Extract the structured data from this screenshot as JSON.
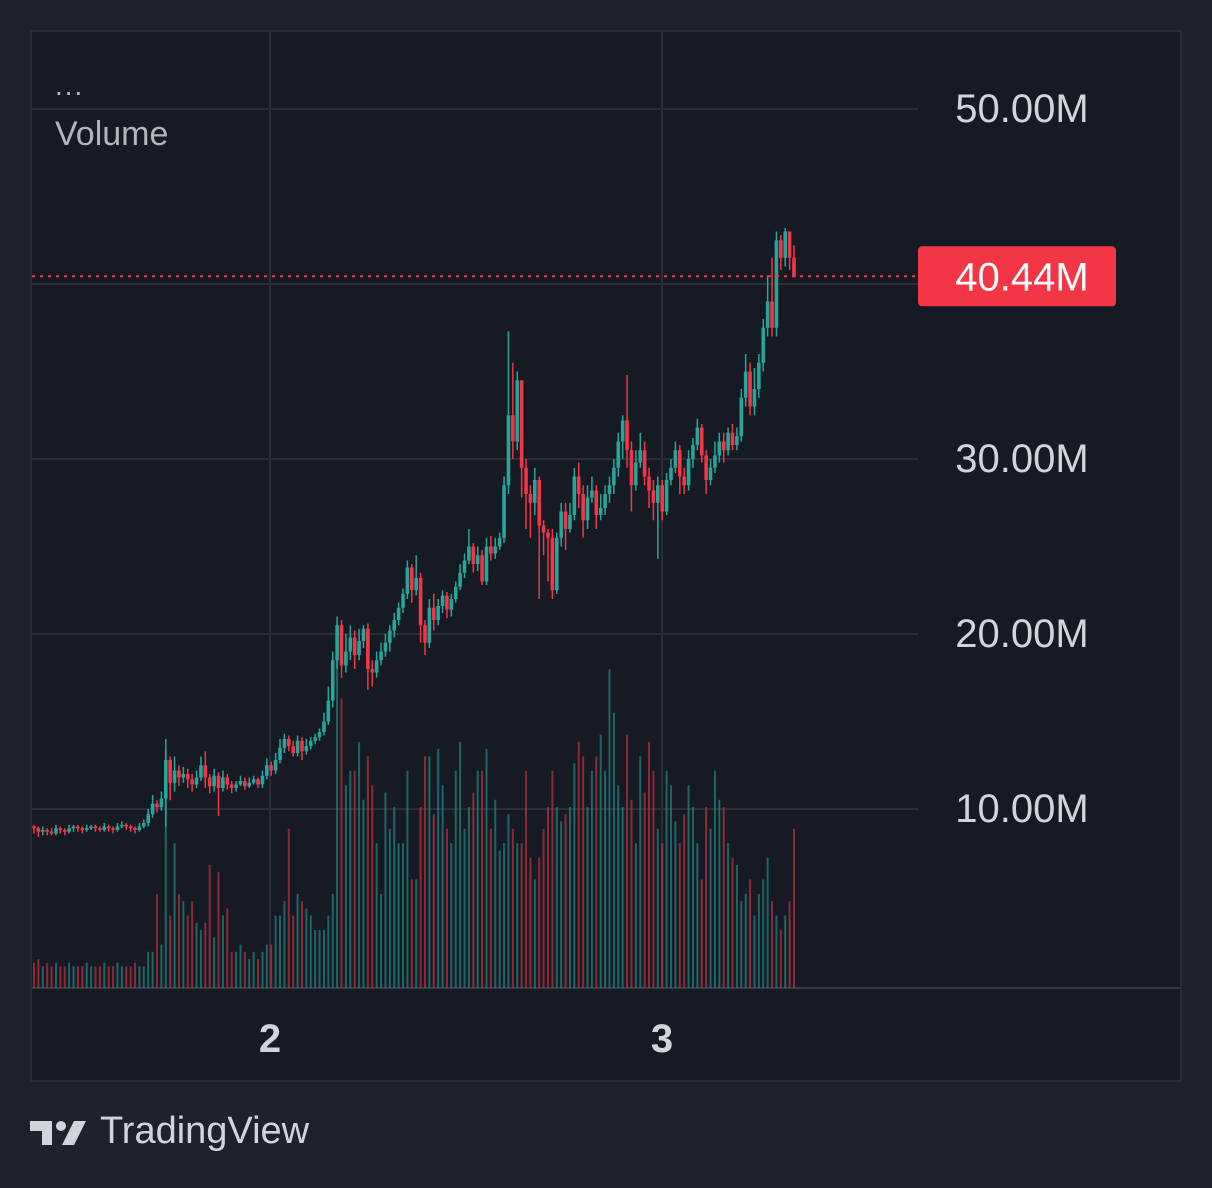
{
  "legend": {
    "dots": "...",
    "title": "Volume"
  },
  "brand": {
    "name": "TradingView"
  },
  "colors": {
    "up": "#26a69a",
    "down": "#f23645",
    "grid": "#2a2e39",
    "text": "#d1d4dc",
    "background": "#161a25",
    "price_tag": "#f23645"
  },
  "chart_data": {
    "type": "candlestick",
    "grid": true,
    "x_ticks": [
      "2",
      "3"
    ],
    "y_ticks": [
      "10.00M",
      "20.00M",
      "30.00M",
      "50.00M"
    ],
    "ylim": [
      0,
      55
    ],
    "y_unit": "M",
    "last_price": {
      "label": "40.44M",
      "value": 40.44
    },
    "candles": [
      [
        9.0,
        8.9,
        9.1,
        8.6
      ],
      [
        8.9,
        8.7,
        9.0,
        8.4
      ],
      [
        8.7,
        8.8,
        9.0,
        8.5
      ],
      [
        8.8,
        8.7,
        8.9,
        8.5
      ],
      [
        8.7,
        8.6,
        8.9,
        8.5
      ],
      [
        8.6,
        8.9,
        9.1,
        8.5
      ],
      [
        8.9,
        8.8,
        9.0,
        8.6
      ],
      [
        8.8,
        8.7,
        8.9,
        8.5
      ],
      [
        8.7,
        8.9,
        9.1,
        8.6
      ],
      [
        8.9,
        9.0,
        9.1,
        8.7
      ],
      [
        9.0,
        8.9,
        9.1,
        8.7
      ],
      [
        8.9,
        8.8,
        9.0,
        8.6
      ],
      [
        8.8,
        8.9,
        9.1,
        8.7
      ],
      [
        8.9,
        9.0,
        9.1,
        8.8
      ],
      [
        9.0,
        8.9,
        9.1,
        8.7
      ],
      [
        8.9,
        8.8,
        9.0,
        8.7
      ],
      [
        8.8,
        9.0,
        9.2,
        8.7
      ],
      [
        9.0,
        8.9,
        9.1,
        8.7
      ],
      [
        8.9,
        8.8,
        9.0,
        8.6
      ],
      [
        8.8,
        9.0,
        9.2,
        8.7
      ],
      [
        9.0,
        9.1,
        9.3,
        8.9
      ],
      [
        9.1,
        9.0,
        9.2,
        8.8
      ],
      [
        9.0,
        8.9,
        9.1,
        8.7
      ],
      [
        8.9,
        8.8,
        9.0,
        8.6
      ],
      [
        8.8,
        9.0,
        9.2,
        8.7
      ],
      [
        9.0,
        9.2,
        9.4,
        8.9
      ],
      [
        9.2,
        9.7,
        10.0,
        9.0
      ],
      [
        9.7,
        10.3,
        10.8,
        9.5
      ],
      [
        10.3,
        10.1,
        10.5,
        9.8
      ],
      [
        10.1,
        10.6,
        11.0,
        9.9
      ],
      [
        10.6,
        12.8,
        14.0,
        9.0
      ],
      [
        12.8,
        11.5,
        13.0,
        10.5
      ],
      [
        11.5,
        12.2,
        13.0,
        11.0
      ],
      [
        12.2,
        11.8,
        12.5,
        11.3
      ],
      [
        11.8,
        12.0,
        12.4,
        11.5
      ],
      [
        12.0,
        11.7,
        12.3,
        11.2
      ],
      [
        11.7,
        11.4,
        12.0,
        11.0
      ],
      [
        11.4,
        11.8,
        12.2,
        11.2
      ],
      [
        11.8,
        12.5,
        13.0,
        11.6
      ],
      [
        12.5,
        11.8,
        13.3,
        11.2
      ],
      [
        11.8,
        11.3,
        12.0,
        10.9
      ],
      [
        11.3,
        11.9,
        12.3,
        11.0
      ],
      [
        11.9,
        11.2,
        12.1,
        9.6
      ],
      [
        11.2,
        11.8,
        12.2,
        11.0
      ],
      [
        11.8,
        11.4,
        12.0,
        11.1
      ],
      [
        11.4,
        11.2,
        11.6,
        10.9
      ],
      [
        11.2,
        11.4,
        11.6,
        11.0
      ],
      [
        11.4,
        11.6,
        11.9,
        11.3
      ],
      [
        11.6,
        11.3,
        11.8,
        11.1
      ],
      [
        11.3,
        11.5,
        11.8,
        11.2
      ],
      [
        11.5,
        11.7,
        11.9,
        11.4
      ],
      [
        11.7,
        11.4,
        11.8,
        11.2
      ],
      [
        11.4,
        11.9,
        12.2,
        11.2
      ],
      [
        11.9,
        12.5,
        12.9,
        11.7
      ],
      [
        12.5,
        12.2,
        12.7,
        11.9
      ],
      [
        12.2,
        12.8,
        13.2,
        12.0
      ],
      [
        12.8,
        13.5,
        14.0,
        12.6
      ],
      [
        13.5,
        14.0,
        14.3,
        13.2
      ],
      [
        14.0,
        13.6,
        14.2,
        13.3
      ],
      [
        13.6,
        13.2,
        13.9,
        13.0
      ],
      [
        13.2,
        13.9,
        14.2,
        13.0
      ],
      [
        13.9,
        13.3,
        14.1,
        12.8
      ],
      [
        13.3,
        13.6,
        14.0,
        13.1
      ],
      [
        13.6,
        13.9,
        14.1,
        13.4
      ],
      [
        13.9,
        14.1,
        14.3,
        13.7
      ],
      [
        14.1,
        14.4,
        14.6,
        13.9
      ],
      [
        14.4,
        15.0,
        15.5,
        14.2
      ],
      [
        15.0,
        16.2,
        17.0,
        14.8
      ],
      [
        16.2,
        18.5,
        19.0,
        15.8
      ],
      [
        18.5,
        20.5,
        21.0,
        18.0
      ],
      [
        20.5,
        18.2,
        20.8,
        17.5
      ],
      [
        18.2,
        19.0,
        20.0,
        17.8
      ],
      [
        19.0,
        19.8,
        20.5,
        18.5
      ],
      [
        19.8,
        18.8,
        20.2,
        18.0
      ],
      [
        18.8,
        19.6,
        20.3,
        18.5
      ],
      [
        19.6,
        20.3,
        20.5,
        19.2
      ],
      [
        20.3,
        18.0,
        20.6,
        16.8
      ],
      [
        18.0,
        17.8,
        18.5,
        17.0
      ],
      [
        17.8,
        18.5,
        19.0,
        17.5
      ],
      [
        18.5,
        19.0,
        19.5,
        18.2
      ],
      [
        19.0,
        19.5,
        20.0,
        18.7
      ],
      [
        19.5,
        20.2,
        20.5,
        19.0
      ],
      [
        20.2,
        20.8,
        21.2,
        19.8
      ],
      [
        20.8,
        21.5,
        21.8,
        20.5
      ],
      [
        21.5,
        22.3,
        22.6,
        21.2
      ],
      [
        22.3,
        23.8,
        24.2,
        22.0
      ],
      [
        23.8,
        22.5,
        24.0,
        21.8
      ],
      [
        22.5,
        23.2,
        24.5,
        22.2
      ],
      [
        23.2,
        20.5,
        23.5,
        19.5
      ],
      [
        20.5,
        19.5,
        20.8,
        18.8
      ],
      [
        19.5,
        21.5,
        22.0,
        19.2
      ],
      [
        21.5,
        20.8,
        22.3,
        20.2
      ],
      [
        20.8,
        21.6,
        22.0,
        20.5
      ],
      [
        21.6,
        22.2,
        22.5,
        21.2
      ],
      [
        22.2,
        21.4,
        22.4,
        20.9
      ],
      [
        21.4,
        22.0,
        22.3,
        21.0
      ],
      [
        22.0,
        22.7,
        23.0,
        21.8
      ],
      [
        22.7,
        23.5,
        24.0,
        22.5
      ],
      [
        23.5,
        24.2,
        24.6,
        23.2
      ],
      [
        24.2,
        25.0,
        26.0,
        24.0
      ],
      [
        25.0,
        24.0,
        25.2,
        23.5
      ],
      [
        24.0,
        24.5,
        25.0,
        23.6
      ],
      [
        24.5,
        23.0,
        24.8,
        22.8
      ],
      [
        23.0,
        25.0,
        25.5,
        22.8
      ],
      [
        25.0,
        24.6,
        25.6,
        24.2
      ],
      [
        24.6,
        25.0,
        25.5,
        24.3
      ],
      [
        25.0,
        25.5,
        25.8,
        24.8
      ],
      [
        25.5,
        28.5,
        29.0,
        25.2
      ],
      [
        28.5,
        32.5,
        37.3,
        28.0
      ],
      [
        32.5,
        31.0,
        35.5,
        30.0
      ],
      [
        31.0,
        34.5,
        35.0,
        30.5
      ],
      [
        34.5,
        29.5,
        34.0,
        27.8
      ],
      [
        29.5,
        28.0,
        30.0,
        26.0
      ],
      [
        28.0,
        27.5,
        28.5,
        25.5
      ],
      [
        27.5,
        28.8,
        29.5,
        26.8
      ],
      [
        28.8,
        26.2,
        29.0,
        22.0
      ],
      [
        26.2,
        25.8,
        26.5,
        24.5
      ],
      [
        25.8,
        25.5,
        26.0,
        23.0
      ],
      [
        25.5,
        22.5,
        26.0,
        22.0
      ],
      [
        22.5,
        25.5,
        25.8,
        22.3
      ],
      [
        25.5,
        27.0,
        27.5,
        25.0
      ],
      [
        27.0,
        26.0,
        27.5,
        24.8
      ],
      [
        26.0,
        26.8,
        27.5,
        25.8
      ],
      [
        26.8,
        29.0,
        29.5,
        26.5
      ],
      [
        29.0,
        28.0,
        29.8,
        27.2
      ],
      [
        28.0,
        26.5,
        28.5,
        25.5
      ],
      [
        26.5,
        27.8,
        28.5,
        26.0
      ],
      [
        27.8,
        28.2,
        29.0,
        27.5
      ],
      [
        28.2,
        26.8,
        28.5,
        26.0
      ],
      [
        26.8,
        27.2,
        28.0,
        26.5
      ],
      [
        27.2,
        28.0,
        28.5,
        26.8
      ],
      [
        28.0,
        28.5,
        29.0,
        27.5
      ],
      [
        28.5,
        29.5,
        30.0,
        28.0
      ],
      [
        29.5,
        31.0,
        31.5,
        29.0
      ],
      [
        31.0,
        32.2,
        32.5,
        30.0
      ],
      [
        32.2,
        30.5,
        34.8,
        29.5
      ],
      [
        30.5,
        28.5,
        31.0,
        27.0
      ],
      [
        28.5,
        29.8,
        30.5,
        28.2
      ],
      [
        29.8,
        30.5,
        31.5,
        29.5
      ],
      [
        30.5,
        29.0,
        31.0,
        28.5
      ],
      [
        29.0,
        28.2,
        29.5,
        27.2
      ],
      [
        28.2,
        27.5,
        28.8,
        26.5
      ],
      [
        27.5,
        28.5,
        29.0,
        24.3
      ],
      [
        28.5,
        27.0,
        28.8,
        26.5
      ],
      [
        27.0,
        28.8,
        29.2,
        26.8
      ],
      [
        28.8,
        29.5,
        30.0,
        28.5
      ],
      [
        29.5,
        30.5,
        31.0,
        29.2
      ],
      [
        30.5,
        29.0,
        30.8,
        28.0
      ],
      [
        29.0,
        28.5,
        29.5,
        28.0
      ],
      [
        28.5,
        30.0,
        30.5,
        28.2
      ],
      [
        30.0,
        30.8,
        31.2,
        29.5
      ],
      [
        30.8,
        31.8,
        32.3,
        30.5
      ],
      [
        31.8,
        30.2,
        32.0,
        29.8
      ],
      [
        30.2,
        28.8,
        30.5,
        28.0
      ],
      [
        28.8,
        29.5,
        30.0,
        28.5
      ],
      [
        29.5,
        30.2,
        31.0,
        29.2
      ],
      [
        30.2,
        31.0,
        31.5,
        29.8
      ],
      [
        31.0,
        30.5,
        31.5,
        29.8
      ],
      [
        30.5,
        31.5,
        31.8,
        30.2
      ],
      [
        31.5,
        30.8,
        32.0,
        30.5
      ],
      [
        30.8,
        31.3,
        31.8,
        30.5
      ],
      [
        31.3,
        33.5,
        34.0,
        31.0
      ],
      [
        33.5,
        35.0,
        36.0,
        33.0
      ],
      [
        35.0,
        33.0,
        35.5,
        32.5
      ],
      [
        33.0,
        34.0,
        35.2,
        32.5
      ],
      [
        34.0,
        35.5,
        36.0,
        33.5
      ],
      [
        35.5,
        37.5,
        38.0,
        35.0
      ],
      [
        37.5,
        39.0,
        40.5,
        37.0
      ],
      [
        39.0,
        37.5,
        41.5,
        37.0
      ],
      [
        37.5,
        42.5,
        43.0,
        37.0
      ],
      [
        42.5,
        41.5,
        42.8,
        40.8
      ],
      [
        41.5,
        43.0,
        43.2,
        41.0
      ],
      [
        43.0,
        41.5,
        43.0,
        40.8
      ],
      [
        41.5,
        40.4,
        42.2,
        40.4
      ]
    ],
    "volume": [
      0.35,
      0.4,
      0.3,
      0.35,
      0.3,
      0.35,
      0.3,
      0.3,
      0.35,
      0.3,
      0.3,
      0.3,
      0.35,
      0.3,
      0.3,
      0.3,
      0.35,
      0.3,
      0.3,
      0.35,
      0.3,
      0.3,
      0.3,
      0.35,
      0.3,
      0.3,
      0.5,
      0.5,
      1.3,
      0.6,
      3.3,
      1.0,
      2.0,
      1.3,
      1.2,
      1.0,
      1.2,
      0.9,
      0.8,
      0.9,
      1.7,
      0.7,
      1.6,
      1.0,
      1.1,
      0.5,
      0.5,
      0.6,
      0.5,
      0.4,
      0.5,
      0.4,
      0.5,
      0.6,
      0.6,
      1.0,
      1.0,
      1.2,
      2.2,
      1.0,
      1.3,
      1.2,
      1.1,
      1.0,
      0.8,
      0.8,
      0.8,
      1.0,
      1.3,
      4.8,
      4.0,
      2.8,
      3.0,
      3.0,
      3.4,
      2.6,
      3.2,
      2.8,
      2.0,
      1.3,
      2.7,
      2.2,
      2.5,
      2.0,
      2.0,
      3.0,
      1.5,
      1.5,
      2.5,
      3.2,
      3.2,
      2.4,
      3.3,
      2.8,
      2.2,
      2.0,
      3.0,
      3.4,
      2.2,
      2.5,
      2.7,
      3.0,
      3.0,
      3.3,
      2.2,
      2.6,
      1.9,
      2.0,
      2.4,
      2.2,
      2.0,
      2.0,
      3.0,
      1.8,
      1.5,
      1.8,
      2.2,
      2.5,
      3.0,
      2.5,
      2.3,
      2.4,
      2.5,
      3.1,
      3.4,
      3.2,
      2.5,
      3.0,
      3.2,
      3.5,
      3.0,
      4.4,
      3.8,
      2.8,
      2.5,
      3.5,
      2.6,
      2.0,
      3.2,
      2.7,
      3.4,
      3.0,
      2.2,
      2.0,
      3.0,
      2.8,
      2.3,
      2.0,
      2.4,
      2.8,
      2.5,
      2.0,
      1.5,
      2.5,
      2.2,
      3.0,
      2.6,
      2.5,
      2.0,
      1.8,
      1.7,
      1.2,
      1.3,
      1.5,
      1.0,
      1.3,
      1.5,
      1.8,
      1.2,
      1.0,
      0.8,
      1.0,
      1.2,
      2.2
    ]
  }
}
